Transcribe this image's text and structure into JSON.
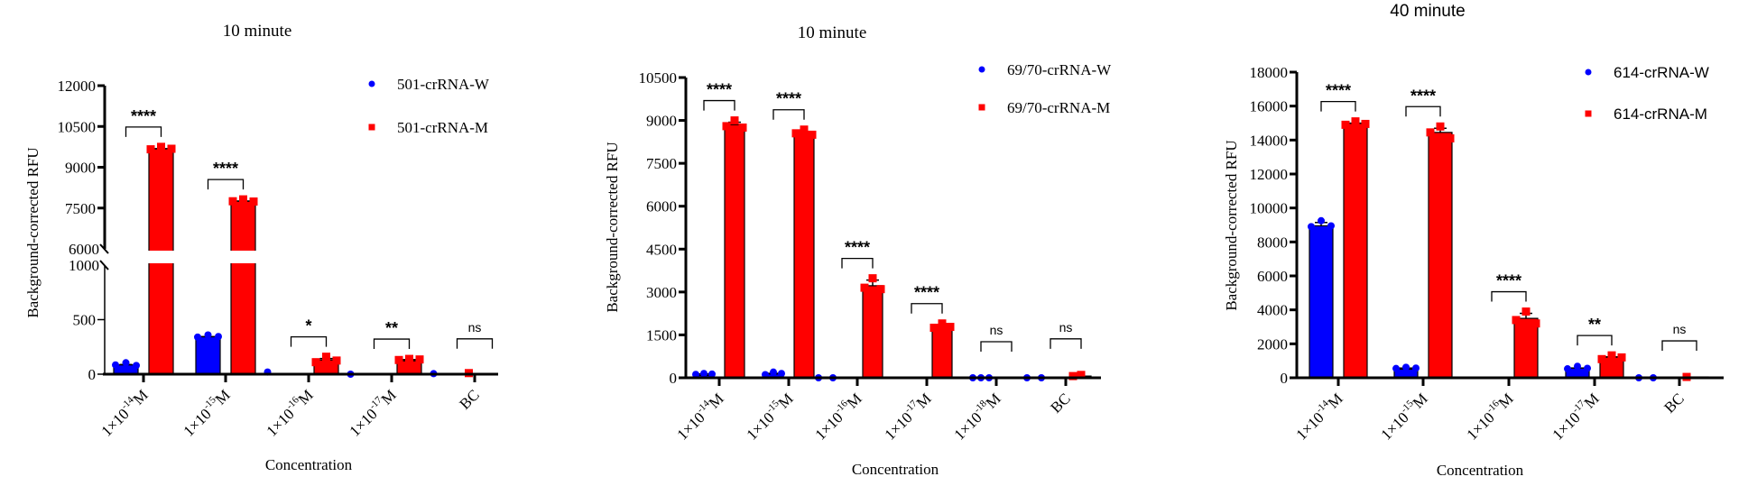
{
  "chart_data": [
    {
      "type": "bar",
      "title": "10 minute",
      "xlabel": "Concentration",
      "ylabel": "Background-corrected RFU",
      "categories": [
        {
          "base": "1×10",
          "exp": "-14",
          "unit": "M"
        },
        {
          "base": "1×10",
          "exp": "-15",
          "unit": "M"
        },
        {
          "base": "1×10",
          "exp": "-16",
          "unit": "M"
        },
        {
          "base": "1×10",
          "exp": "-17",
          "unit": "M"
        },
        {
          "base": "BC",
          "exp": "",
          "unit": ""
        }
      ],
      "y_axis": {
        "broken": true,
        "lower_range": [
          0,
          1000
        ],
        "lower_ticks": [
          "0",
          "500",
          "1000"
        ],
        "upper_range": [
          6000,
          12000
        ],
        "upper_ticks": [
          "6000",
          "7500",
          "9000",
          "10500",
          "12000"
        ]
      },
      "series": [
        {
          "name": "501-crRNA-W",
          "color": "#0000FF",
          "marker": "circle",
          "values": [
            85,
            345,
            0,
            0,
            0
          ],
          "points": [
            [
              85,
              105,
              80
            ],
            [
              340,
              360,
              345
            ],
            [
              20,
              null,
              null
            ],
            [
              0,
              null,
              null
            ],
            [
              5,
              null,
              null
            ]
          ]
        },
        {
          "name": "501-crRNA-M",
          "color": "#FF0000",
          "marker": "square",
          "values": [
            9680,
            7760,
            130,
            135,
            0
          ],
          "points": [
            [
              9660,
              9750,
              9680
            ],
            [
              7750,
              7820,
              7740
            ],
            [
              110,
              160,
              125
            ],
            [
              130,
              140,
              135
            ],
            [
              10,
              null,
              null
            ]
          ]
        }
      ],
      "significance": [
        "****",
        "****",
        "*",
        "**",
        "ns"
      ],
      "legend": "top-right"
    },
    {
      "type": "bar",
      "title": "10 minute",
      "xlabel": "Concentration",
      "ylabel": "Background-corrected RFU",
      "categories": [
        {
          "base": "1×10",
          "exp": "-14",
          "unit": "M"
        },
        {
          "base": "1×10",
          "exp": "-15",
          "unit": "M"
        },
        {
          "base": "1×10",
          "exp": "-16",
          "unit": "M"
        },
        {
          "base": "1×10",
          "exp": "-17",
          "unit": "M"
        },
        {
          "base": "1×10",
          "exp": "-18",
          "unit": "M"
        },
        {
          "base": "BC",
          "exp": "",
          "unit": ""
        }
      ],
      "y_axis": {
        "broken": false,
        "range": [
          0,
          10500
        ],
        "ticks": [
          "0",
          "1500",
          "3000",
          "4500",
          "6000",
          "7500",
          "9000",
          "10500"
        ]
      },
      "series": [
        {
          "name": "69/70-crRNA-W",
          "color": "#0000FF",
          "marker": "circle",
          "values": [
            140,
            160,
            0,
            0,
            0,
            0
          ],
          "points": [
            [
              120,
              150,
              130
            ],
            [
              110,
              200,
              150
            ],
            [
              0,
              0,
              null
            ],
            [
              null,
              null,
              null
            ],
            [
              0,
              0,
              0
            ],
            [
              0,
              0,
              null
            ]
          ]
        },
        {
          "name": "69/70-crRNA-M",
          "color": "#FF0000",
          "marker": "square",
          "values": [
            8850,
            8580,
            3220,
            1800,
            0,
            60
          ],
          "points": [
            [
              8800,
              9000,
              8750
            ],
            [
              8550,
              8680,
              8500
            ],
            [
              3150,
              3480,
              3100
            ],
            [
              1750,
              1900,
              1780
            ],
            [
              null,
              null,
              null
            ],
            [
              60,
              100,
              null
            ]
          ]
        }
      ],
      "significance": [
        "****",
        "****",
        "****",
        "****",
        "ns",
        "ns"
      ],
      "legend": "top-right"
    },
    {
      "type": "bar",
      "title": "40 minute",
      "xlabel": "Concentration",
      "ylabel": "Background-corrected RFU",
      "categories": [
        {
          "base": "1×10",
          "exp": "-14",
          "unit": "M"
        },
        {
          "base": "1×10",
          "exp": "-15",
          "unit": "M"
        },
        {
          "base": "1×10",
          "exp": "-16",
          "unit": "M"
        },
        {
          "base": "1×10",
          "exp": "-17",
          "unit": "M"
        },
        {
          "base": "BC",
          "exp": "",
          "unit": ""
        }
      ],
      "y_axis": {
        "broken": false,
        "range": [
          0,
          18000
        ],
        "ticks": [
          "0",
          "2000",
          "4000",
          "6000",
          "8000",
          "10000",
          "12000",
          "14000",
          "16000",
          "18000"
        ]
      },
      "series": [
        {
          "name": "614-crRNA-W",
          "color": "#0000FF",
          "marker": "circle",
          "values": [
            8950,
            580,
            0,
            580,
            0
          ],
          "points": [
            [
              8900,
              9250,
              8950
            ],
            [
              550,
              620,
              570
            ],
            [
              null,
              null,
              null
            ],
            [
              530,
              680,
              560
            ],
            [
              0,
              0,
              null
            ]
          ]
        },
        {
          "name": "614-crRNA-M",
          "color": "#FF0000",
          "marker": "square",
          "values": [
            14980,
            14450,
            3500,
            1240,
            50
          ],
          "points": [
            [
              14900,
              15100,
              14950
            ],
            [
              14450,
              14800,
              14100
            ],
            [
              3400,
              3900,
              3200
            ],
            [
              1100,
              1320,
              1200
            ],
            [
              50,
              null,
              null
            ]
          ]
        }
      ],
      "significance": [
        "****",
        "****",
        "****",
        "**",
        "ns"
      ],
      "legend": "top-right"
    }
  ]
}
